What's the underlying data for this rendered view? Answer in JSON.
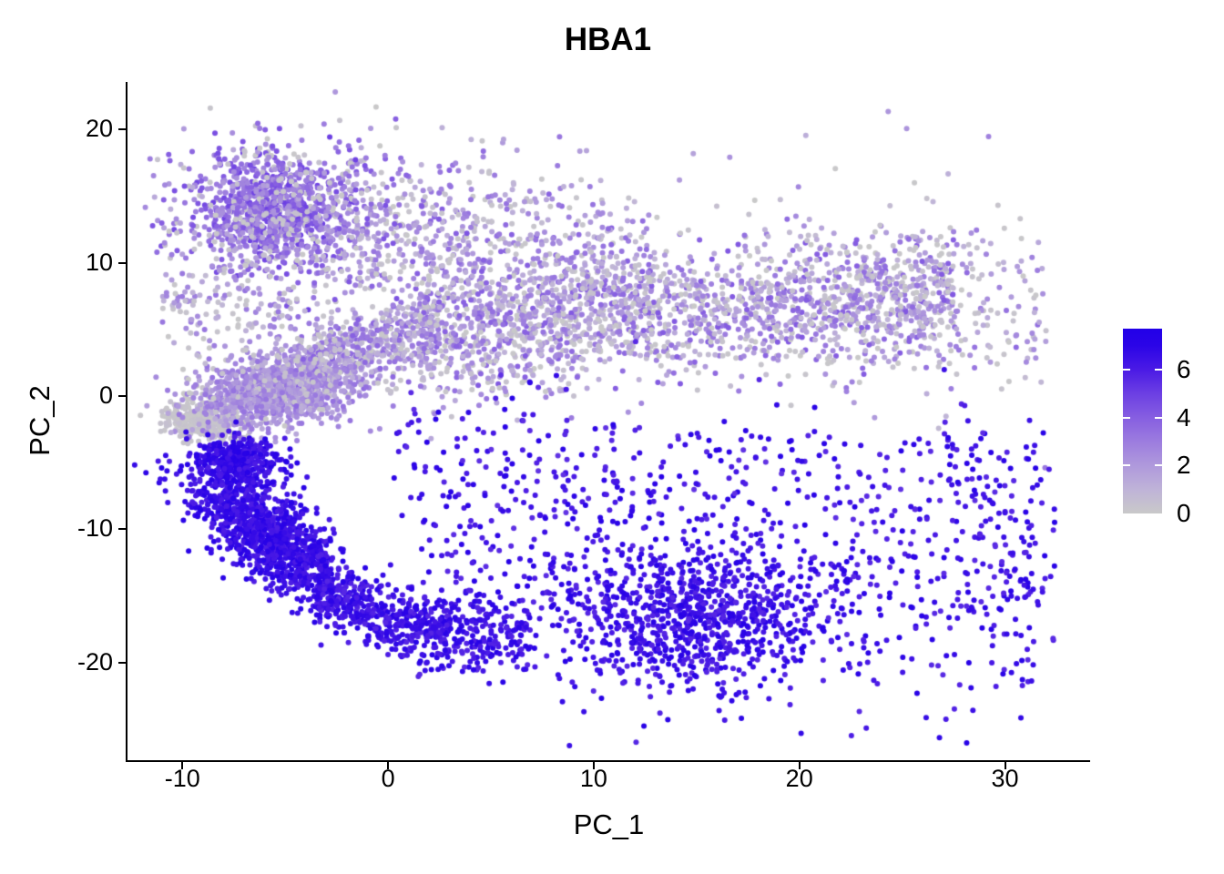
{
  "title": "HBA1",
  "panel": {
    "x_axis": {
      "label": "PC_1",
      "tick_labels": [
        "-10",
        "0",
        "10",
        "20",
        "30"
      ],
      "tick_values": [
        -10,
        0,
        10,
        20,
        30
      ],
      "lim": [
        -12.67,
        34.14
      ]
    },
    "y_axis": {
      "label": "PC_2",
      "tick_labels": [
        "20",
        "10",
        "0",
        "-10",
        "-20"
      ],
      "tick_values": [
        20,
        10,
        0,
        -10,
        -20
      ],
      "lim": [
        -27.32,
        23.57
      ]
    }
  },
  "colorbar": {
    "tick_labels": [
      "6",
      "4",
      "2",
      "0"
    ],
    "tick_values": [
      6,
      4,
      2,
      0
    ],
    "edge_tick_values": [
      6,
      4,
      2
    ],
    "vmin": 0,
    "vmax": 7.7
  },
  "chart_data": {
    "type": "scatter",
    "title": "HBA1",
    "xlabel": "PC_1",
    "ylabel": "PC_2",
    "xlim": [
      -12.67,
      34.14
    ],
    "ylim": [
      -27.32,
      23.57
    ],
    "x_ticks": [
      -10,
      0,
      10,
      20,
      30
    ],
    "y_ticks": [
      -20,
      -10,
      0,
      10,
      20
    ],
    "grid": false,
    "legend_position": "right",
    "point_radius": 3,
    "seed": 7,
    "color_scale": {
      "vmin": 0,
      "vmax": 7.7,
      "low": "#C9C9C9",
      "high": "#2200E8",
      "stops": [
        [
          0,
          "#C9C9C9"
        ],
        [
          1,
          "#BFB3D8"
        ],
        [
          2,
          "#AF99DC"
        ],
        [
          3,
          "#9C7CDF"
        ],
        [
          4,
          "#865EE1"
        ],
        [
          5,
          "#6C3FE3"
        ],
        [
          6,
          "#4A1AE5"
        ],
        [
          7,
          "#2B04E7"
        ],
        [
          7.7,
          "#2200E8"
        ]
      ]
    },
    "clusters": [
      {
        "name": "grey-notch",
        "type": "gauss",
        "n": 380,
        "c": [
          -8.8,
          -1.8
        ],
        "s": [
          1.0,
          0.75
        ],
        "v": [
          0,
          0.45
        ]
      },
      {
        "name": "purple-core",
        "type": "gauss",
        "n": 1300,
        "c": [
          -5.3,
          0.5
        ],
        "s": [
          2.0,
          1.25
        ],
        "rot": 25,
        "v": [
          1.2,
          3.3
        ],
        "grey": 0.1
      },
      {
        "name": "diag-stream",
        "type": "band",
        "n": 550,
        "x": [
          -4.5,
          2.5
        ],
        "y": [
          2,
          5.5
        ],
        "sy": 1.4,
        "v": [
          0.6,
          4.0
        ],
        "grey": 0.18
      },
      {
        "name": "mid-band",
        "type": "band",
        "n": 1800,
        "x": [
          1.5,
          27.5
        ],
        "y": [
          5,
          7.6
        ],
        "sy": 2.3,
        "v": [
          0.5,
          4.2
        ],
        "grey": 0.26
      },
      {
        "name": "upper-scatter",
        "type": "band",
        "n": 650,
        "x": [
          -2.5,
          13
        ],
        "y": [
          13,
          9
        ],
        "sy": 3.1,
        "v": [
          0.5,
          4.0
        ],
        "grey": 0.2
      },
      {
        "name": "topleft-cluster",
        "type": "gauss",
        "n": 900,
        "c": [
          -5.6,
          14.2
        ],
        "s": [
          1.7,
          2.0
        ],
        "v": [
          2.2,
          5.0
        ],
        "grey": 0.1
      },
      {
        "name": "topleft-halo",
        "type": "gauss",
        "n": 430,
        "c": [
          -4.3,
          13.6
        ],
        "s": [
          3.4,
          3.1
        ],
        "v": [
          1.2,
          4.5
        ],
        "grey": 0.24
      },
      {
        "name": "left-gap-sparse",
        "type": "band",
        "n": 220,
        "x": [
          -11,
          -2.5
        ],
        "y": [
          8,
          4
        ],
        "sy": 2.4,
        "v": [
          0.5,
          3.2
        ],
        "grey": 0.32
      },
      {
        "name": "right-top-sparse",
        "type": "band",
        "n": 240,
        "x": [
          20,
          32
        ],
        "y": [
          8,
          6
        ],
        "sy": 3.4,
        "v": [
          0.6,
          3.6
        ],
        "grey": 0.3
      },
      {
        "name": "upper-wide-sparse",
        "type": "band",
        "n": 150,
        "x": [
          -7,
          30
        ],
        "y": [
          10.5,
          9
        ],
        "sy": 4.6,
        "v": [
          0.8,
          3.6
        ],
        "grey": 0.3
      },
      {
        "name": "below-band-sparse",
        "type": "band",
        "n": 50,
        "x": [
          0,
          9
        ],
        "y": [
          1.5,
          0.5
        ],
        "sy": 1.2,
        "v": [
          0.6,
          3.0
        ],
        "grey": 0.3
      },
      {
        "name": "blue-core",
        "type": "gauss",
        "n": 1250,
        "c": [
          -5.9,
          -10.3
        ],
        "s": [
          2.9,
          1.15
        ],
        "rot": -55,
        "v": [
          5.8,
          7.3
        ]
      },
      {
        "name": "blue-top",
        "type": "gauss",
        "n": 380,
        "c": [
          -7.3,
          -4.9
        ],
        "s": [
          1.0,
          0.95
        ],
        "v": [
          5.8,
          7.3
        ]
      },
      {
        "name": "blue-arc",
        "type": "band",
        "n": 420,
        "x": [
          -3.5,
          3
        ],
        "yquad": [
          -14.5,
          -5.2,
          2.4
        ],
        "sy": 1.1,
        "v": [
          5.6,
          7.2
        ]
      },
      {
        "name": "blue-tail",
        "type": "band",
        "n": 160,
        "x": [
          2.5,
          7
        ],
        "y": [
          -17,
          -17.8
        ],
        "sy": 1.3,
        "v": [
          5.6,
          7.2
        ]
      },
      {
        "name": "below-arc-sparse",
        "type": "band",
        "n": 60,
        "x": [
          -1,
          5
        ],
        "y": [
          -18,
          -20.5
        ],
        "sy": 1.1,
        "v": [
          5.6,
          7.2
        ]
      },
      {
        "name": "bottom-cloud",
        "type": "gauss",
        "n": 850,
        "c": [
          15,
          -16.8
        ],
        "s": [
          3.4,
          2.6
        ],
        "v": [
          5.6,
          7.3
        ]
      },
      {
        "name": "bottom-spread",
        "type": "band",
        "n": 650,
        "x": [
          1,
          31.5
        ],
        "y": [
          -10.5,
          -14.5
        ],
        "sy": 4.8,
        "v": [
          5.5,
          7.3
        ]
      },
      {
        "name": "mid-sparse-blue",
        "type": "band",
        "n": 230,
        "x": [
          0,
          32
        ],
        "y": [
          -4.5,
          -7
        ],
        "sy": 2.4,
        "v": [
          5.3,
          7.2
        ]
      },
      {
        "name": "right-edge-blue",
        "type": "band",
        "n": 80,
        "x": [
          27,
          32.5
        ],
        "y": [
          -3,
          -15
        ],
        "sy": 4.0,
        "v": [
          5.5,
          7.2
        ]
      }
    ]
  }
}
